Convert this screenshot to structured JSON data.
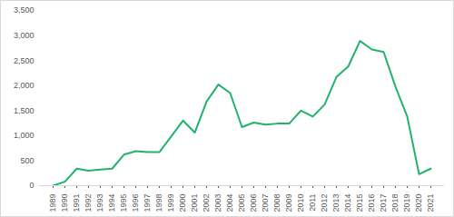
{
  "chart_data": {
    "type": "line",
    "categories": [
      "1989",
      "1990",
      "1991",
      "1992",
      "1993",
      "1994",
      "1995",
      "1996",
      "1997",
      "1998",
      "1999",
      "2000",
      "2001",
      "2002",
      "2003",
      "2004",
      "2005",
      "2006",
      "2007",
      "2008",
      "2009",
      "2010",
      "2011",
      "2012",
      "2013",
      "2014",
      "2015",
      "2016",
      "2017",
      "2018",
      "2019",
      "2020",
      "2021"
    ],
    "values": [
      0,
      80,
      340,
      300,
      320,
      340,
      620,
      690,
      670,
      670,
      980,
      1300,
      1060,
      1680,
      2020,
      1850,
      1170,
      1260,
      1220,
      1240,
      1240,
      1500,
      1380,
      1620,
      2170,
      2380,
      2890,
      2720,
      2670,
      1980,
      1380,
      230,
      340
    ],
    "color": "#21b36c",
    "ylim": [
      0,
      3500
    ],
    "yticks": [
      0,
      500,
      1000,
      1500,
      2000,
      2500,
      3000,
      3500
    ],
    "grid": false
  }
}
